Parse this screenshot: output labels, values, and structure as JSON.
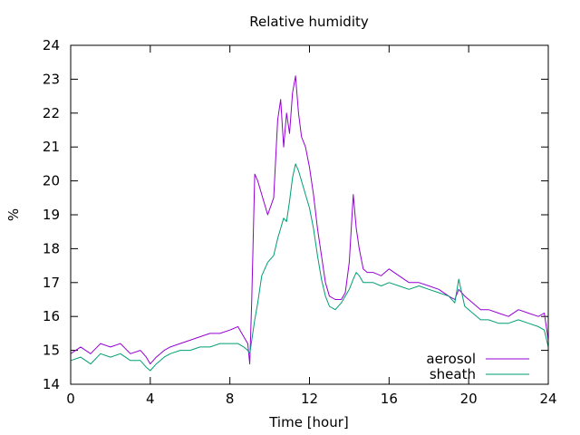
{
  "chart_data": {
    "type": "line",
    "title": "Relative humidity",
    "xlabel": "Time [hour]",
    "ylabel": "%",
    "xlim": [
      0,
      24
    ],
    "ylim": [
      14,
      24
    ],
    "xticks": [
      0,
      4,
      8,
      12,
      16,
      20,
      24
    ],
    "yticks": [
      14,
      15,
      16,
      17,
      18,
      19,
      20,
      21,
      22,
      23,
      24
    ],
    "grid": false,
    "legend_position": "bottom-right",
    "series": [
      {
        "name": "aerosol",
        "color": "#9400d3",
        "x": [
          0,
          0.5,
          1,
          1.5,
          2,
          2.5,
          3,
          3.5,
          3.8,
          4,
          4.3,
          4.7,
          5,
          5.5,
          6,
          6.5,
          7,
          7.5,
          8,
          8.4,
          8.7,
          8.9,
          9.0,
          9.1,
          9.25,
          9.4,
          9.6,
          9.9,
          10.2,
          10.4,
          10.55,
          10.7,
          10.85,
          11.0,
          11.15,
          11.3,
          11.45,
          11.6,
          11.8,
          12.0,
          12.2,
          12.4,
          12.6,
          12.8,
          13.0,
          13.3,
          13.6,
          13.8,
          14.0,
          14.2,
          14.35,
          14.5,
          14.7,
          14.9,
          15.2,
          15.6,
          16.0,
          16.5,
          17.0,
          17.5,
          18.0,
          18.5,
          19.0,
          19.3,
          19.5,
          19.8,
          20.2,
          20.6,
          21.0,
          21.5,
          22.0,
          22.5,
          23.0,
          23.5,
          23.8,
          24.0
        ],
        "y": [
          14.9,
          15.1,
          14.9,
          15.2,
          15.1,
          15.2,
          14.9,
          15.0,
          14.8,
          14.6,
          14.8,
          15.0,
          15.1,
          15.2,
          15.3,
          15.4,
          15.5,
          15.5,
          15.6,
          15.7,
          15.4,
          15.2,
          14.6,
          16.5,
          20.2,
          20.0,
          19.6,
          19.0,
          19.5,
          21.8,
          22.4,
          21.0,
          22.0,
          21.4,
          22.6,
          23.1,
          22.0,
          21.3,
          21.0,
          20.4,
          19.6,
          18.6,
          17.8,
          17.0,
          16.6,
          16.5,
          16.5,
          16.7,
          17.6,
          19.6,
          18.6,
          18.0,
          17.4,
          17.3,
          17.3,
          17.2,
          17.4,
          17.2,
          17.0,
          17.0,
          16.9,
          16.8,
          16.6,
          16.5,
          16.8,
          16.6,
          16.4,
          16.2,
          16.2,
          16.1,
          16.0,
          16.2,
          16.1,
          16.0,
          16.1,
          15.3
        ]
      },
      {
        "name": "sheath",
        "color": "#009e73",
        "x": [
          0,
          0.5,
          1,
          1.5,
          2,
          2.5,
          3,
          3.5,
          3.8,
          4,
          4.3,
          4.7,
          5,
          5.5,
          6,
          6.5,
          7,
          7.5,
          8,
          8.4,
          8.7,
          8.9,
          9.0,
          9.1,
          9.25,
          9.4,
          9.6,
          9.9,
          10.2,
          10.4,
          10.55,
          10.7,
          10.85,
          11.0,
          11.15,
          11.3,
          11.45,
          11.6,
          11.8,
          12.0,
          12.2,
          12.4,
          12.6,
          12.8,
          13.0,
          13.3,
          13.6,
          13.8,
          14.0,
          14.2,
          14.35,
          14.5,
          14.7,
          14.9,
          15.2,
          15.6,
          16.0,
          16.5,
          17.0,
          17.5,
          18.0,
          18.5,
          19.0,
          19.3,
          19.5,
          19.8,
          20.2,
          20.6,
          21.0,
          21.5,
          22.0,
          22.5,
          23.0,
          23.5,
          23.8,
          24.0
        ],
        "y": [
          14.7,
          14.8,
          14.6,
          14.9,
          14.8,
          14.9,
          14.7,
          14.7,
          14.5,
          14.4,
          14.6,
          14.8,
          14.9,
          15.0,
          15.0,
          15.1,
          15.1,
          15.2,
          15.2,
          15.2,
          15.1,
          15.0,
          14.9,
          15.3,
          15.9,
          16.4,
          17.2,
          17.6,
          17.8,
          18.3,
          18.6,
          18.9,
          18.8,
          19.4,
          20.1,
          20.5,
          20.3,
          20.0,
          19.6,
          19.2,
          18.6,
          17.8,
          17.1,
          16.6,
          16.3,
          16.2,
          16.4,
          16.6,
          16.8,
          17.1,
          17.3,
          17.2,
          17.0,
          17.0,
          17.0,
          16.9,
          17.0,
          16.9,
          16.8,
          16.9,
          16.8,
          16.7,
          16.6,
          16.4,
          17.1,
          16.3,
          16.1,
          15.9,
          15.9,
          15.8,
          15.8,
          15.9,
          15.8,
          15.7,
          15.6,
          15.1
        ]
      }
    ]
  }
}
